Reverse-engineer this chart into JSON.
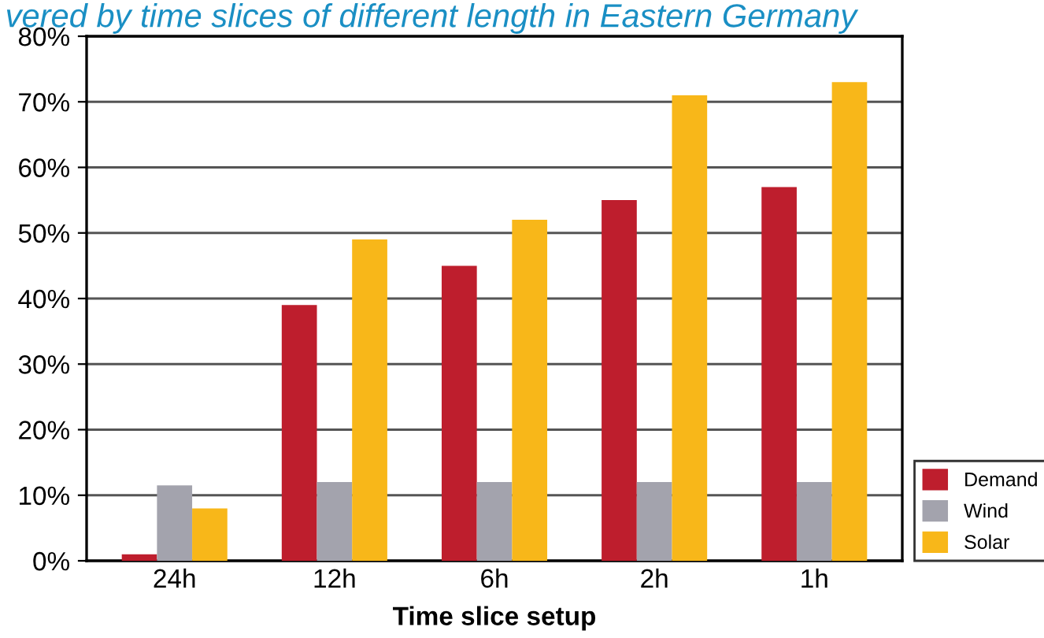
{
  "chart_data": {
    "type": "bar",
    "title": "vered by time slices of different length in Eastern Germany",
    "xlabel": "Time slice setup",
    "categories": [
      "24h",
      "12h",
      "6h",
      "2h",
      "1h"
    ],
    "series": [
      {
        "name": "Demand",
        "color": "#be1e2d",
        "values": [
          1,
          39,
          45,
          55,
          57
        ]
      },
      {
        "name": "Wind",
        "color": "#a3a3ad",
        "values": [
          11.5,
          12,
          12,
          12,
          12
        ]
      },
      {
        "name": "Solar",
        "color": "#f8b719",
        "values": [
          8,
          49,
          52,
          71,
          73
        ]
      }
    ],
    "ylim": [
      0,
      80
    ],
    "yticks": [
      {
        "value": 0,
        "label": "0%"
      },
      {
        "value": 10,
        "label": "10%"
      },
      {
        "value": 20,
        "label": "20%"
      },
      {
        "value": 30,
        "label": "30%"
      },
      {
        "value": 40,
        "label": "40%"
      },
      {
        "value": 50,
        "label": "50%"
      },
      {
        "value": 60,
        "label": "60%"
      },
      {
        "value": 70,
        "label": "70%"
      },
      {
        "value": 80,
        "label": "80%"
      }
    ],
    "grid": "y",
    "legend": "right"
  }
}
